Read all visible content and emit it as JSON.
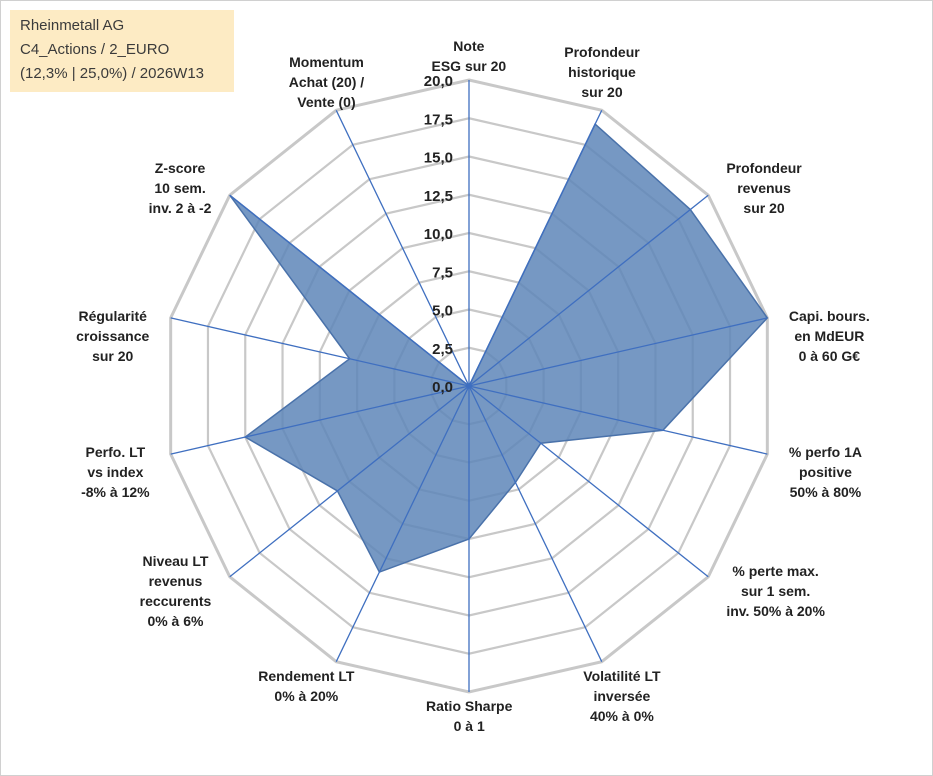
{
  "title_box": {
    "line1": "Rheinmetall AG",
    "line2": "C4_Actions / 2_EURO",
    "line3": "(12,3% | 25,0%) / 2026W13"
  },
  "colors": {
    "fill": "#5e86b8",
    "stroke": "#4a72aa",
    "spoke": "#3f6fc0",
    "grid": "#c8c8c8",
    "title_bg": "#fdebc4"
  },
  "chart_data": {
    "type": "radar",
    "title": "Rheinmetall AG",
    "rlim": [
      0,
      20
    ],
    "ticks": [
      "0,0",
      "2,5",
      "5,0",
      "7,5",
      "10,0",
      "12,5",
      "15,0",
      "17,5",
      "20,0"
    ],
    "tick_values": [
      0,
      2.5,
      5,
      7.5,
      10,
      12.5,
      15,
      17.5,
      20
    ],
    "grid": true,
    "categories": [
      {
        "lines": [
          "Note",
          "ESG sur 20"
        ]
      },
      {
        "lines": [
          "Profondeur",
          "historique",
          "sur 20"
        ]
      },
      {
        "lines": [
          "Profondeur",
          "revenus",
          "sur 20"
        ]
      },
      {
        "lines": [
          "Capi. bours.",
          "en MdEUR",
          "0 à 60 G€"
        ]
      },
      {
        "lines": [
          "% perfo 1A",
          "positive",
          "50% à 80%"
        ]
      },
      {
        "lines": [
          "% perte max.",
          "sur 1 sem.",
          "inv. 50% à 20%"
        ]
      },
      {
        "lines": [
          "Volatilité LT",
          "inversée",
          "40% à 0%"
        ]
      },
      {
        "lines": [
          "Ratio Sharpe",
          "0 à 1"
        ]
      },
      {
        "lines": [
          "Rendement LT",
          "0% à 20%"
        ]
      },
      {
        "lines": [
          "Niveau LT",
          "revenus",
          "reccurents",
          "0% à 6%"
        ]
      },
      {
        "lines": [
          "Perfo. LT",
          "vs index",
          "-8% à 12%"
        ]
      },
      {
        "lines": [
          "Régularité",
          "croissance",
          "sur 20"
        ]
      },
      {
        "lines": [
          "Z-score",
          "10 sem.",
          "inv. 2 à -2"
        ]
      },
      {
        "lines": [
          "Momentum",
          "Achat (20) /",
          "Vente (0)"
        ]
      }
    ],
    "series": [
      {
        "name": "Rheinmetall AG",
        "values": [
          0,
          19,
          18.5,
          20,
          13,
          6,
          7,
          10,
          13.5,
          11,
          15,
          8,
          20,
          0
        ]
      }
    ]
  }
}
